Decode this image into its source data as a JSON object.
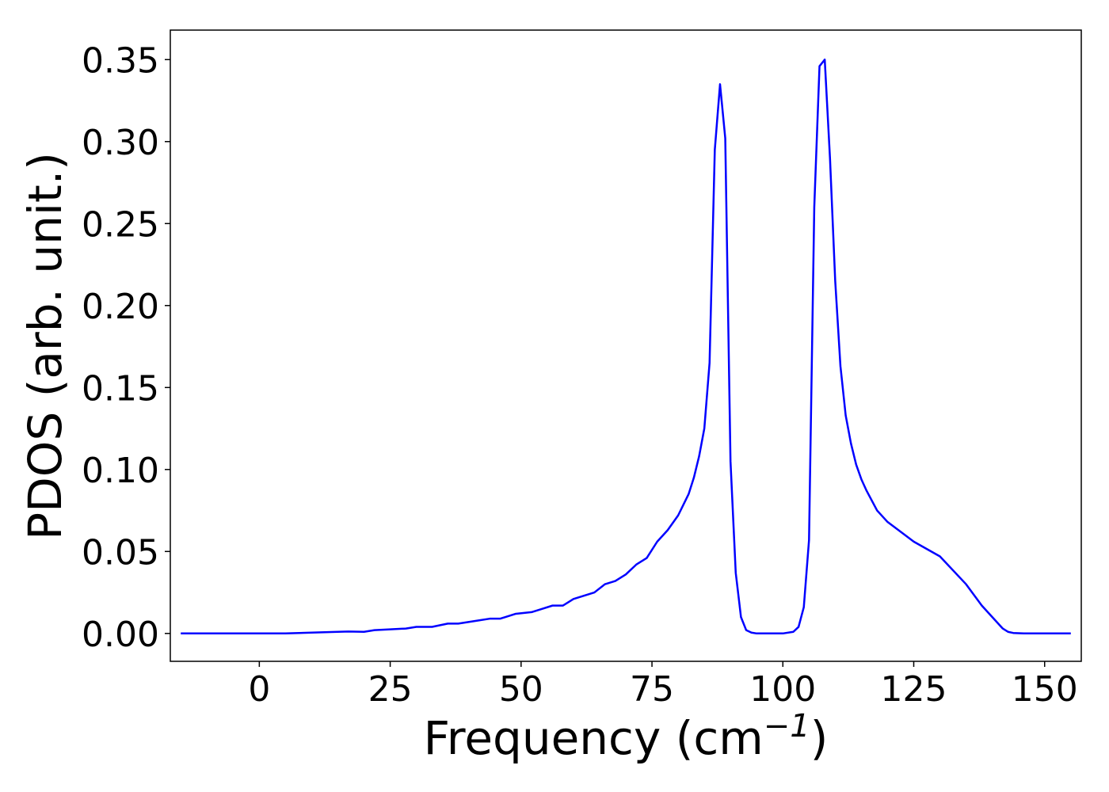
{
  "chart_data": {
    "type": "line",
    "title": "",
    "xlabel": "Frequency (cm",
    "xlabel_sup": "−1",
    "xlabel_close": ")",
    "ylabel": "PDOS (arb. unit.)",
    "xlim": [
      -17,
      157
    ],
    "ylim": [
      -0.017,
      0.368
    ],
    "xticks": [
      0,
      25,
      50,
      75,
      100,
      125,
      150
    ],
    "yticks": [
      0.0,
      0.05,
      0.1,
      0.15,
      0.2,
      0.25,
      0.3,
      0.35
    ],
    "ytick_labels": [
      "0.00",
      "0.05",
      "0.10",
      "0.15",
      "0.20",
      "0.25",
      "0.30",
      "0.35"
    ],
    "grid": false,
    "series": [
      {
        "color": "#0000ff",
        "x": [
          -15,
          -5,
          0,
          5,
          10,
          15,
          17,
          20,
          22,
          25,
          28,
          30,
          33,
          36,
          38,
          42,
          44,
          46,
          49,
          52,
          54,
          56,
          58,
          60,
          62,
          64,
          66,
          68,
          70,
          72,
          74,
          76,
          78,
          80,
          82,
          83,
          84,
          85,
          86,
          87,
          88,
          89,
          90,
          91,
          92,
          93,
          94,
          95,
          96,
          98,
          100,
          102,
          103,
          104,
          105,
          106,
          107,
          108,
          109,
          110,
          111,
          112,
          113,
          114,
          115,
          116,
          118,
          120,
          125,
          130,
          135,
          138,
          140,
          142,
          143,
          144,
          146,
          150,
          155
        ],
        "y": [
          0.0,
          0.0,
          0.0,
          0.0,
          0.0005,
          0.001,
          0.0012,
          0.001,
          0.002,
          0.0025,
          0.003,
          0.004,
          0.004,
          0.006,
          0.006,
          0.008,
          0.009,
          0.009,
          0.012,
          0.013,
          0.015,
          0.017,
          0.017,
          0.021,
          0.023,
          0.025,
          0.03,
          0.032,
          0.036,
          0.042,
          0.046,
          0.056,
          0.063,
          0.072,
          0.085,
          0.095,
          0.108,
          0.125,
          0.165,
          0.295,
          0.335,
          0.302,
          0.105,
          0.037,
          0.01,
          0.002,
          0.0005,
          0.0,
          0.0,
          0.0,
          0.0,
          0.001,
          0.004,
          0.016,
          0.057,
          0.26,
          0.346,
          0.35,
          0.29,
          0.215,
          0.163,
          0.133,
          0.116,
          0.103,
          0.094,
          0.087,
          0.075,
          0.068,
          0.056,
          0.047,
          0.03,
          0.017,
          0.01,
          0.003,
          0.001,
          0.0003,
          0.0,
          0.0,
          0.0
        ]
      }
    ]
  }
}
